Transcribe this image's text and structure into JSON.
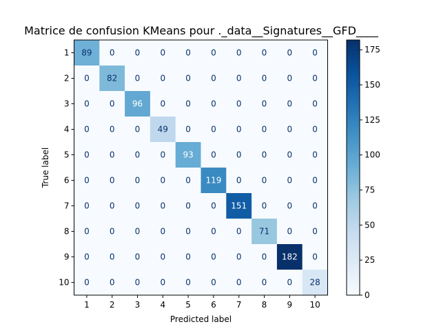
{
  "chart_data": {
    "type": "heatmap",
    "title": "Matrice de confusion KMeans pour ._data__Signatures__GFD____",
    "xlabel": "Predicted label",
    "ylabel": "True label",
    "x_categories": [
      "1",
      "2",
      "3",
      "4",
      "5",
      "6",
      "7",
      "8",
      "9",
      "10"
    ],
    "y_categories": [
      "1",
      "2",
      "3",
      "4",
      "5",
      "6",
      "7",
      "8",
      "9",
      "10"
    ],
    "values": [
      [
        89,
        0,
        0,
        0,
        0,
        0,
        0,
        0,
        0,
        0
      ],
      [
        0,
        82,
        0,
        0,
        0,
        0,
        0,
        0,
        0,
        0
      ],
      [
        0,
        0,
        96,
        0,
        0,
        0,
        0,
        0,
        0,
        0
      ],
      [
        0,
        0,
        0,
        49,
        0,
        0,
        0,
        0,
        0,
        0
      ],
      [
        0,
        0,
        0,
        0,
        93,
        0,
        0,
        0,
        0,
        0
      ],
      [
        0,
        0,
        0,
        0,
        0,
        119,
        0,
        0,
        0,
        0
      ],
      [
        0,
        0,
        0,
        0,
        0,
        0,
        151,
        0,
        0,
        0
      ],
      [
        0,
        0,
        0,
        0,
        0,
        0,
        0,
        71,
        0,
        0
      ],
      [
        0,
        0,
        0,
        0,
        0,
        0,
        0,
        0,
        182,
        0
      ],
      [
        0,
        0,
        0,
        0,
        0,
        0,
        0,
        0,
        0,
        28
      ]
    ],
    "colormap": "Blues",
    "colorbar": {
      "min": 0,
      "max": 182,
      "ticks": [
        "0",
        "25",
        "50",
        "75",
        "100",
        "125",
        "150",
        "175"
      ]
    },
    "grid": false
  }
}
